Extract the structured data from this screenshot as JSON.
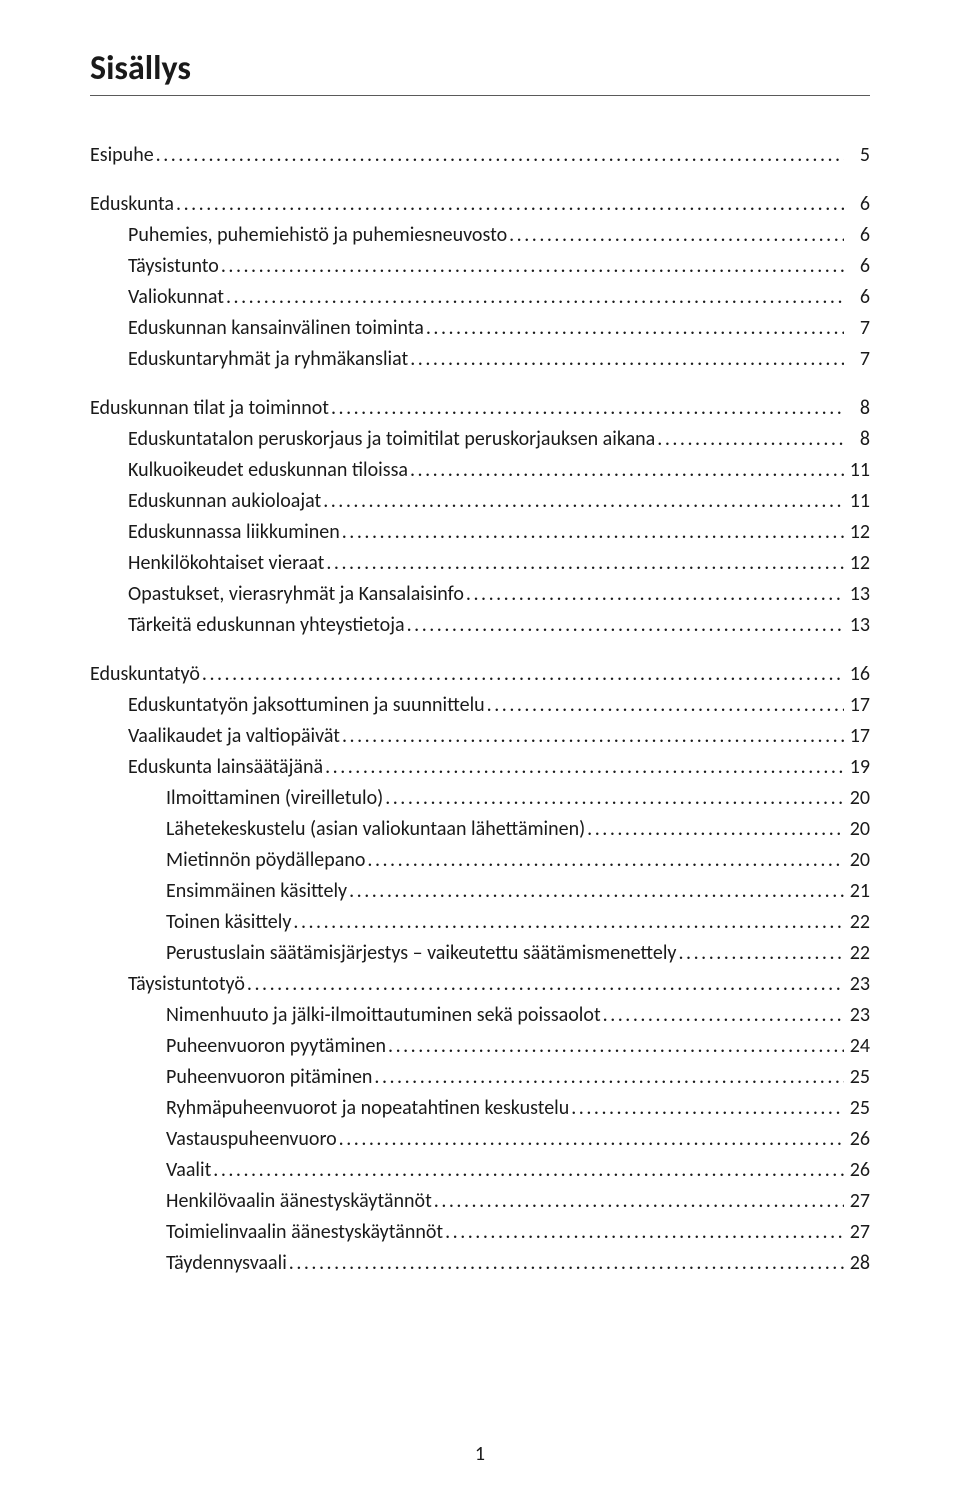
{
  "title": "Sisällys",
  "page_number": "1",
  "entries": [
    {
      "level": 0,
      "label": "Esipuhe",
      "page": "5"
    },
    {
      "level": 0,
      "label": "Eduskunta",
      "page": "6"
    },
    {
      "level": 1,
      "label": "Puhemies, puhemiehistö ja puhemiesneuvosto",
      "page": "6"
    },
    {
      "level": 1,
      "label": "Täysistunto",
      "page": "6"
    },
    {
      "level": 1,
      "label": "Valiokunnat",
      "page": "6"
    },
    {
      "level": 1,
      "label": "Eduskunnan kansainvälinen toiminta",
      "page": "7"
    },
    {
      "level": 1,
      "label": "Eduskuntaryhmät ja ryhmäkansliat",
      "page": "7"
    },
    {
      "level": 0,
      "label": "Eduskunnan tilat ja toiminnot",
      "page": "8"
    },
    {
      "level": 1,
      "label": "Eduskuntatalon peruskorjaus ja toimitilat peruskorjauksen aikana",
      "page": "8"
    },
    {
      "level": 1,
      "label": "Kulkuoikeudet eduskunnan tiloissa",
      "page": "11"
    },
    {
      "level": 1,
      "label": "Eduskunnan aukioloajat",
      "page": "11"
    },
    {
      "level": 1,
      "label": "Eduskunnassa liikkuminen",
      "page": "12"
    },
    {
      "level": 1,
      "label": "Henkilökohtaiset vieraat",
      "page": "12"
    },
    {
      "level": 1,
      "label": "Opastukset, vierasryhmät ja Kansalaisinfo",
      "page": "13"
    },
    {
      "level": 1,
      "label": "Tärkeitä eduskunnan yhteystietoja",
      "page": "13"
    },
    {
      "level": 0,
      "label": "Eduskuntatyö",
      "page": "16"
    },
    {
      "level": 1,
      "label": "Eduskuntatyön jaksottuminen ja suunnittelu",
      "page": "17"
    },
    {
      "level": 1,
      "label": "Vaalikaudet ja valtiopäivät",
      "page": "17"
    },
    {
      "level": 1,
      "label": "Eduskunta lainsäätäjänä",
      "page": "19"
    },
    {
      "level": 2,
      "label": "Ilmoittaminen (vireilletulo)",
      "page": "20"
    },
    {
      "level": 2,
      "label": "Lähetekeskustelu (asian valiokuntaan lähettäminen)",
      "page": "20"
    },
    {
      "level": 2,
      "label": "Mietinnön pöydällepano",
      "page": "20"
    },
    {
      "level": 2,
      "label": "Ensimmäinen käsittely",
      "page": "21"
    },
    {
      "level": 2,
      "label": "Toinen käsittely",
      "page": "22"
    },
    {
      "level": 2,
      "label": "Perustuslain säätämisjärjestys – vaikeutettu säätämismenettely",
      "page": "22"
    },
    {
      "level": 1,
      "label": "Täysistuntotyö",
      "page": "23"
    },
    {
      "level": 2,
      "label": "Nimenhuuto ja jälki-ilmoittautuminen sekä poissaolot",
      "page": "23"
    },
    {
      "level": 2,
      "label": "Puheenvuoron pyytäminen",
      "page": "24"
    },
    {
      "level": 2,
      "label": "Puheenvuoron pitäminen",
      "page": "25"
    },
    {
      "level": 2,
      "label": "Ryhmäpuheenvuorot ja nopeatahtinen keskustelu",
      "page": "25"
    },
    {
      "level": 2,
      "label": "Vastauspuheenvuoro",
      "page": "26"
    },
    {
      "level": 2,
      "label": "Vaalit",
      "page": "26"
    },
    {
      "level": 2,
      "label": "Henkilövaalin äänestyskäytännöt",
      "page": "27"
    },
    {
      "level": 2,
      "label": "Toimielinvaalin äänestyskäytännöt",
      "page": "27"
    },
    {
      "level": 2,
      "label": "Täydennysvaali",
      "page": "28"
    }
  ]
}
